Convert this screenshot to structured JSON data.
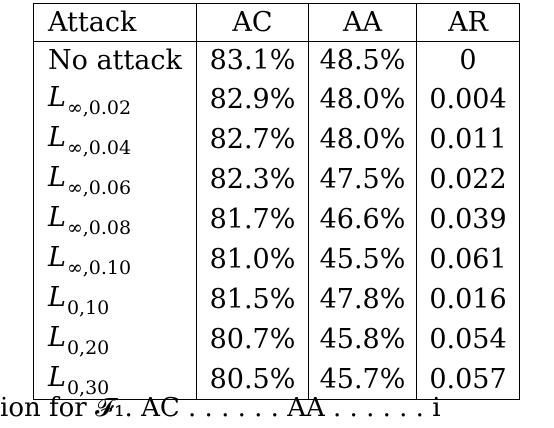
{
  "table": {
    "headers": [
      "Attack",
      "AC",
      "AA",
      "AR"
    ],
    "rows": [
      {
        "attack": "No attack",
        "attack_math": false,
        "ac": "83.1%",
        "aa": "48.5%",
        "ar": "0"
      },
      {
        "attack": "L",
        "attack_sub": "∞,0.02",
        "attack_math": true,
        "ac": "82.9%",
        "aa": "48.0%",
        "ar": "0.004"
      },
      {
        "attack": "L",
        "attack_sub": "∞,0.04",
        "attack_math": true,
        "ac": "82.7%",
        "aa": "48.0%",
        "ar": "0.011"
      },
      {
        "attack": "L",
        "attack_sub": "∞,0.06",
        "attack_math": true,
        "ac": "82.3%",
        "aa": "47.5%",
        "ar": "0.022"
      },
      {
        "attack": "L",
        "attack_sub": "∞,0.08",
        "attack_math": true,
        "ac": "81.7%",
        "aa": "46.6%",
        "ar": "0.039"
      },
      {
        "attack": "L",
        "attack_sub": "∞,0.10",
        "attack_math": true,
        "ac": "81.0%",
        "aa": "45.5%",
        "ar": "0.061"
      },
      {
        "attack": "L",
        "attack_sub": "0,10",
        "attack_math": true,
        "ac": "81.5%",
        "aa": "47.8%",
        "ar": "0.016"
      },
      {
        "attack": "L",
        "attack_sub": "0,20",
        "attack_math": true,
        "ac": "80.7%",
        "aa": "45.8%",
        "ar": "0.054"
      },
      {
        "attack": "L",
        "attack_sub": "0,30",
        "attack_math": true,
        "ac": "80.5%",
        "aa": "45.7%",
        "ar": "0.057"
      }
    ]
  },
  "caption_fragment": "ion for 𝓕₁. AC . . . . . . AA . . . . . . i"
}
